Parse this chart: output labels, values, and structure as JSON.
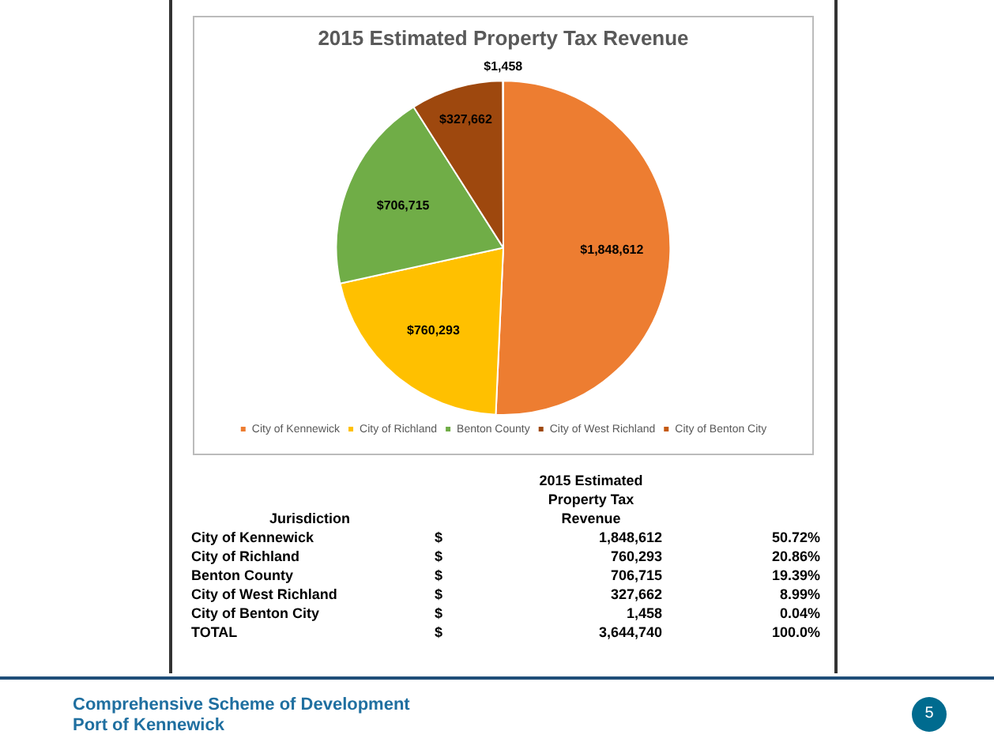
{
  "chart_data": {
    "type": "pie",
    "title": "2015 Estimated Property Tax Revenue",
    "categories": [
      "City of Kennewick",
      "City of Richland",
      "Benton County",
      "City of West Richland",
      "City of Benton City"
    ],
    "values": [
      1848612,
      760293,
      706715,
      327662,
      1458
    ],
    "value_labels": [
      "$1,848,612",
      "$760,293",
      "$706,715",
      "$327,662",
      "$1,458"
    ],
    "colors": [
      "#ed7d31",
      "#ffc000",
      "#70ad47",
      "#9e480e",
      "#c55a11"
    ],
    "legend": "bottom",
    "annotations": [
      "2015 Estimated Property Tax Revenue",
      "Jurisdiction",
      "$",
      "50.72%",
      "20.86%",
      "19.39%",
      "8.99%",
      "0.04%",
      "TOTAL",
      "3,644,740",
      "100.0%",
      "Comprehensive Scheme of Development",
      "Port of Kennewick",
      "5",
      "1,848,612",
      "760,293",
      "706,715",
      "327,662",
      "1,458"
    ]
  }
}
